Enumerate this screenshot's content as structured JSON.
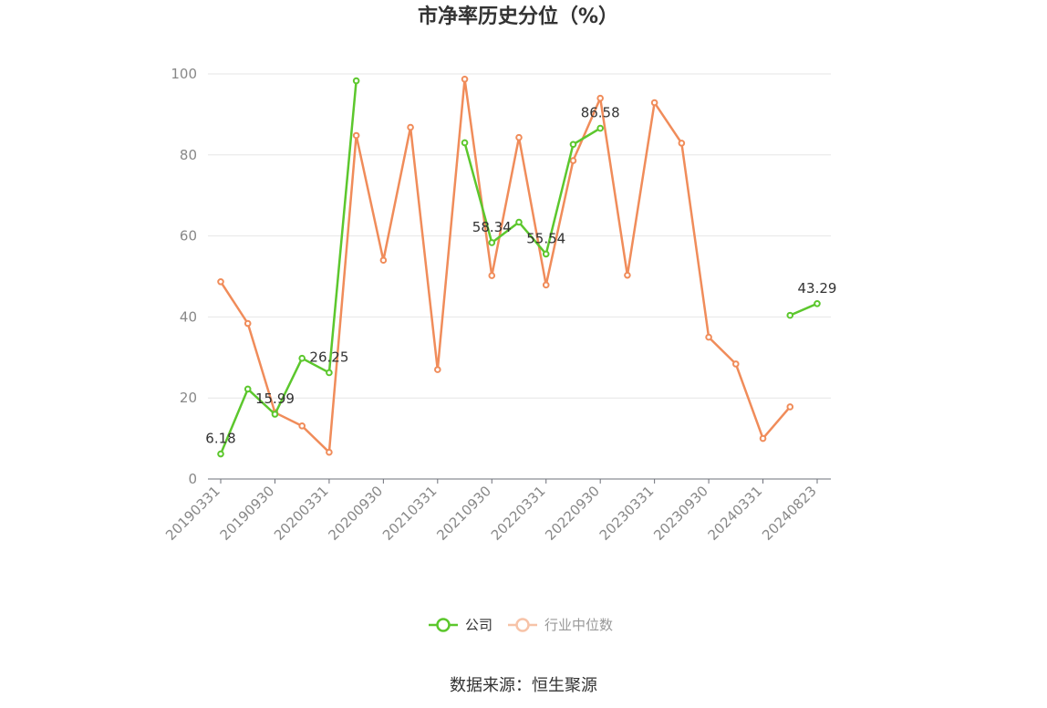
{
  "chart_data": {
    "type": "line",
    "title": "市净率历史分位（%）",
    "ylim": [
      0,
      100
    ],
    "yticks": [
      0,
      20,
      40,
      60,
      80,
      100
    ],
    "x": [
      "20190331",
      "20190630",
      "20190930",
      "20191231",
      "20200331",
      "20200630",
      "20200930",
      "20201231",
      "20210331",
      "20210630",
      "20210930",
      "20211231",
      "20220331",
      "20220630",
      "20220930",
      "20221231",
      "20230331",
      "20230630",
      "20230930",
      "20231231",
      "20240331",
      "20240630",
      "20240823"
    ],
    "xtick_labels": [
      "20190331",
      "20190930",
      "20200331",
      "20200930",
      "20210331",
      "20210930",
      "20220331",
      "20220930",
      "20230331",
      "20230930",
      "20240331",
      "20240823"
    ],
    "grid": true,
    "legend_position": "bottom",
    "series": [
      {
        "name": "公司",
        "color": "#5cc72d",
        "values": [
          6.18,
          22.2,
          15.99,
          29.8,
          26.25,
          98.3,
          null,
          null,
          null,
          83.0,
          58.34,
          63.4,
          55.54,
          82.6,
          86.58,
          null,
          null,
          null,
          null,
          null,
          null,
          40.4,
          43.29
        ],
        "labeled": {
          "0": "6.18",
          "2": "15.99",
          "4": "26.25",
          "10": "58.34",
          "12": "55.54",
          "14": "86.58",
          "22": "43.29"
        }
      },
      {
        "name": "行业中位数",
        "color": "#f08c5a",
        "values": [
          48.7,
          38.4,
          16.4,
          13.1,
          6.6,
          84.8,
          54.0,
          86.8,
          27.0,
          98.7,
          50.2,
          84.3,
          47.9,
          78.6,
          94.0,
          50.3,
          92.9,
          82.9,
          35.0,
          28.4,
          10.0,
          17.8,
          null
        ]
      }
    ]
  },
  "source_text": "数据来源：恒生聚源"
}
